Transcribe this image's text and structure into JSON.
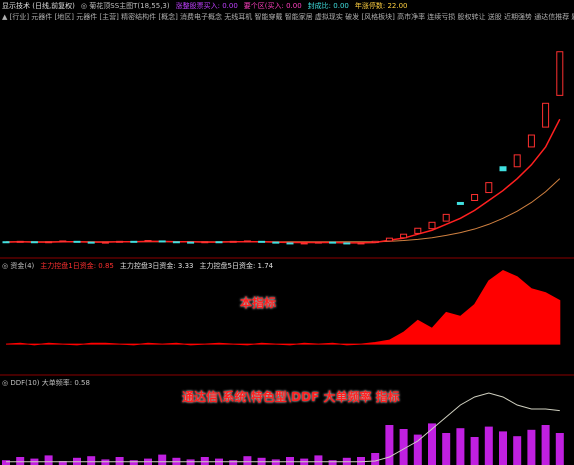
{
  "header": {
    "segments": [
      {
        "text": "显示技术 (日线,前复权)",
        "color": "#e0e0e0"
      },
      {
        "text": "◎ 菊花顶SS主图T(18,55,3)",
        "color": "#c0c0c0"
      },
      {
        "text": "涨整股票买入: 0.00",
        "color": "#c040ff"
      },
      {
        "text": "要个区(买入: 0.00",
        "color": "#ff40c0"
      },
      {
        "text": "封成比: 0.00",
        "color": "#40e0e0"
      },
      {
        "text": "年涨停数: 22.00",
        "color": "#ffd040"
      }
    ],
    "tags": "▲ [行业] 元器件 [地区] 元器件 [主营] 精密结构件 [概念] 消费电子概念 无线耳机 智能穿戴 智能家居 虚拟现实 破发 [风格板块] 高市净率 连续亏损 股权转让 送股 近期强势 通达信推荐 题材 股票论坛 题材切换"
  },
  "price_panel": {
    "ylim": [
      5,
      65
    ],
    "open": [
      9.1,
      9,
      9.1,
      9,
      9.1,
      9.2,
      9,
      8.9,
      9,
      9.2,
      9.2,
      9.3,
      9.1,
      9,
      9,
      9.1,
      9.1,
      9.2,
      9.2,
      9,
      8.8,
      8.7,
      8.9,
      9,
      8.8,
      8.7,
      8.9,
      9.3,
      10.1,
      11.2,
      12.4,
      14.3,
      19,
      19.5,
      21.5,
      28,
      28,
      33,
      38,
      46
    ],
    "close": [
      9,
      9.2,
      8.9,
      9.1,
      9.3,
      9,
      8.8,
      9,
      9.2,
      9.1,
      9.4,
      9.2,
      9,
      8.9,
      9.1,
      9,
      9.2,
      9.3,
      9.1,
      8.9,
      8.7,
      8.8,
      9,
      8.9,
      8.6,
      8.8,
      9.2,
      10,
      11,
      12.5,
      14,
      16,
      18.5,
      21,
      24,
      27,
      31,
      36,
      44,
      57
    ],
    "ma_fast": [
      9,
      9.1,
      9,
      9,
      9.1,
      9.1,
      9,
      9,
      9.1,
      9.1,
      9.2,
      9.2,
      9.1,
      9.1,
      9,
      9,
      9.1,
      9.1,
      9.1,
      9,
      8.9,
      8.9,
      8.9,
      8.9,
      8.8,
      8.8,
      8.9,
      9.5,
      10,
      11,
      12,
      13.5,
      15,
      17,
      19.5,
      22,
      25,
      28.5,
      33,
      40
    ],
    "ma_slow": [
      9.1,
      9.1,
      9.1,
      9.1,
      9.1,
      9.1,
      9.1,
      9.1,
      9.1,
      9.1,
      9.1,
      9.1,
      9.1,
      9.1,
      9.1,
      9.1,
      9.1,
      9.1,
      9.1,
      9.1,
      9.1,
      9.1,
      9.1,
      9.1,
      9.1,
      9.1,
      9.1,
      9.2,
      9.4,
      9.7,
      10.1,
      10.7,
      11.4,
      12.3,
      13.5,
      15,
      16.8,
      19,
      21.7,
      25
    ]
  },
  "fund_panel": {
    "label": "◎ 资金(4)",
    "items": [
      {
        "text": "主力控盘1日资金: 0.85",
        "color": "#ff3030"
      },
      {
        "text": "主力控盘3日资金: 3.33",
        "color": "#e0e0e0"
      },
      {
        "text": "主力控盘5日资金: 1.74",
        "color": "#e0e0e0"
      }
    ],
    "annotation": "本指标",
    "ylim": [
      -1,
      10
    ],
    "values": [
      0,
      0.1,
      -0.1,
      0.1,
      0,
      -0.1,
      0.1,
      0.1,
      0,
      -0.1,
      0.1,
      0,
      0.1,
      -0.1,
      0,
      0.1,
      0,
      -0.1,
      0.1,
      0,
      -0.1,
      0.1,
      0,
      0.1,
      -0.1,
      0,
      0.2,
      0.5,
      1.5,
      3,
      2,
      4,
      3.5,
      5,
      8,
      9.3,
      8.5,
      7,
      6.5,
      5.5
    ]
  },
  "ddf_panel": {
    "label": "◎ DDF(10) 大单频率: 0.58",
    "annotation": "通达信\\系统\\特色型\\DDF 大单频率 指标",
    "ylim": [
      0,
      10
    ],
    "bars": [
      0.6,
      1,
      0.8,
      1.2,
      0.5,
      0.9,
      1.1,
      0.7,
      1,
      0.6,
      0.8,
      1.3,
      0.9,
      0.7,
      1,
      0.8,
      0.6,
      1.1,
      0.9,
      0.7,
      1,
      0.8,
      1.2,
      0.6,
      0.9,
      1,
      1.5,
      5,
      4.5,
      3.8,
      5.2,
      4,
      4.6,
      3.5,
      4.8,
      4.2,
      3.6,
      4.4,
      5,
      4
    ],
    "line": [
      0.4,
      0.4,
      0.4,
      0.4,
      0.4,
      0.4,
      0.4,
      0.4,
      0.4,
      0.4,
      0.4,
      0.4,
      0.4,
      0.4,
      0.4,
      0.4,
      0.4,
      0.4,
      0.4,
      0.4,
      0.4,
      0.4,
      0.4,
      0.4,
      0.4,
      0.4,
      0.5,
      1,
      2,
      3,
      4.5,
      6,
      7.5,
      8.5,
      9,
      8.5,
      7.5,
      7,
      7,
      6.8
    ]
  }
}
